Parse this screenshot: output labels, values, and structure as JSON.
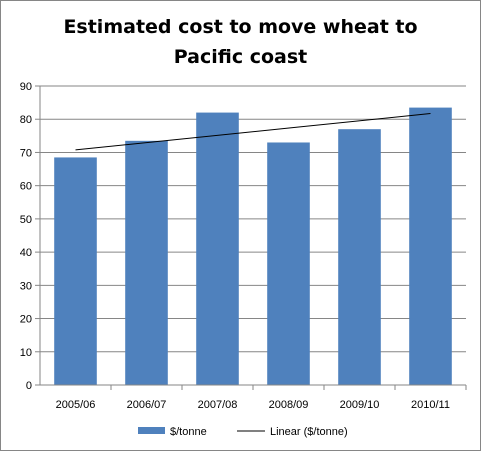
{
  "chart_data": {
    "type": "bar",
    "title_lines": [
      "Estimated cost to move wheat to",
      "Pacific coast"
    ],
    "categories": [
      "2005/06",
      "2006/07",
      "2007/08",
      "2008/09",
      "2009/10",
      "2010/11"
    ],
    "series": [
      {
        "name": "$/tonne",
        "values": [
          68.5,
          73.5,
          82,
          73,
          77,
          83.5
        ],
        "color": "#4F81BD"
      }
    ],
    "trendline": {
      "name": "Linear ($/tonne)",
      "type": "linear",
      "color": "#000000"
    },
    "ylim": [
      0,
      90
    ],
    "yticks": [
      0,
      10,
      20,
      30,
      40,
      50,
      60,
      70,
      80,
      90
    ],
    "xlabel": "",
    "ylabel": "",
    "grid": true,
    "legend": "bottom"
  }
}
